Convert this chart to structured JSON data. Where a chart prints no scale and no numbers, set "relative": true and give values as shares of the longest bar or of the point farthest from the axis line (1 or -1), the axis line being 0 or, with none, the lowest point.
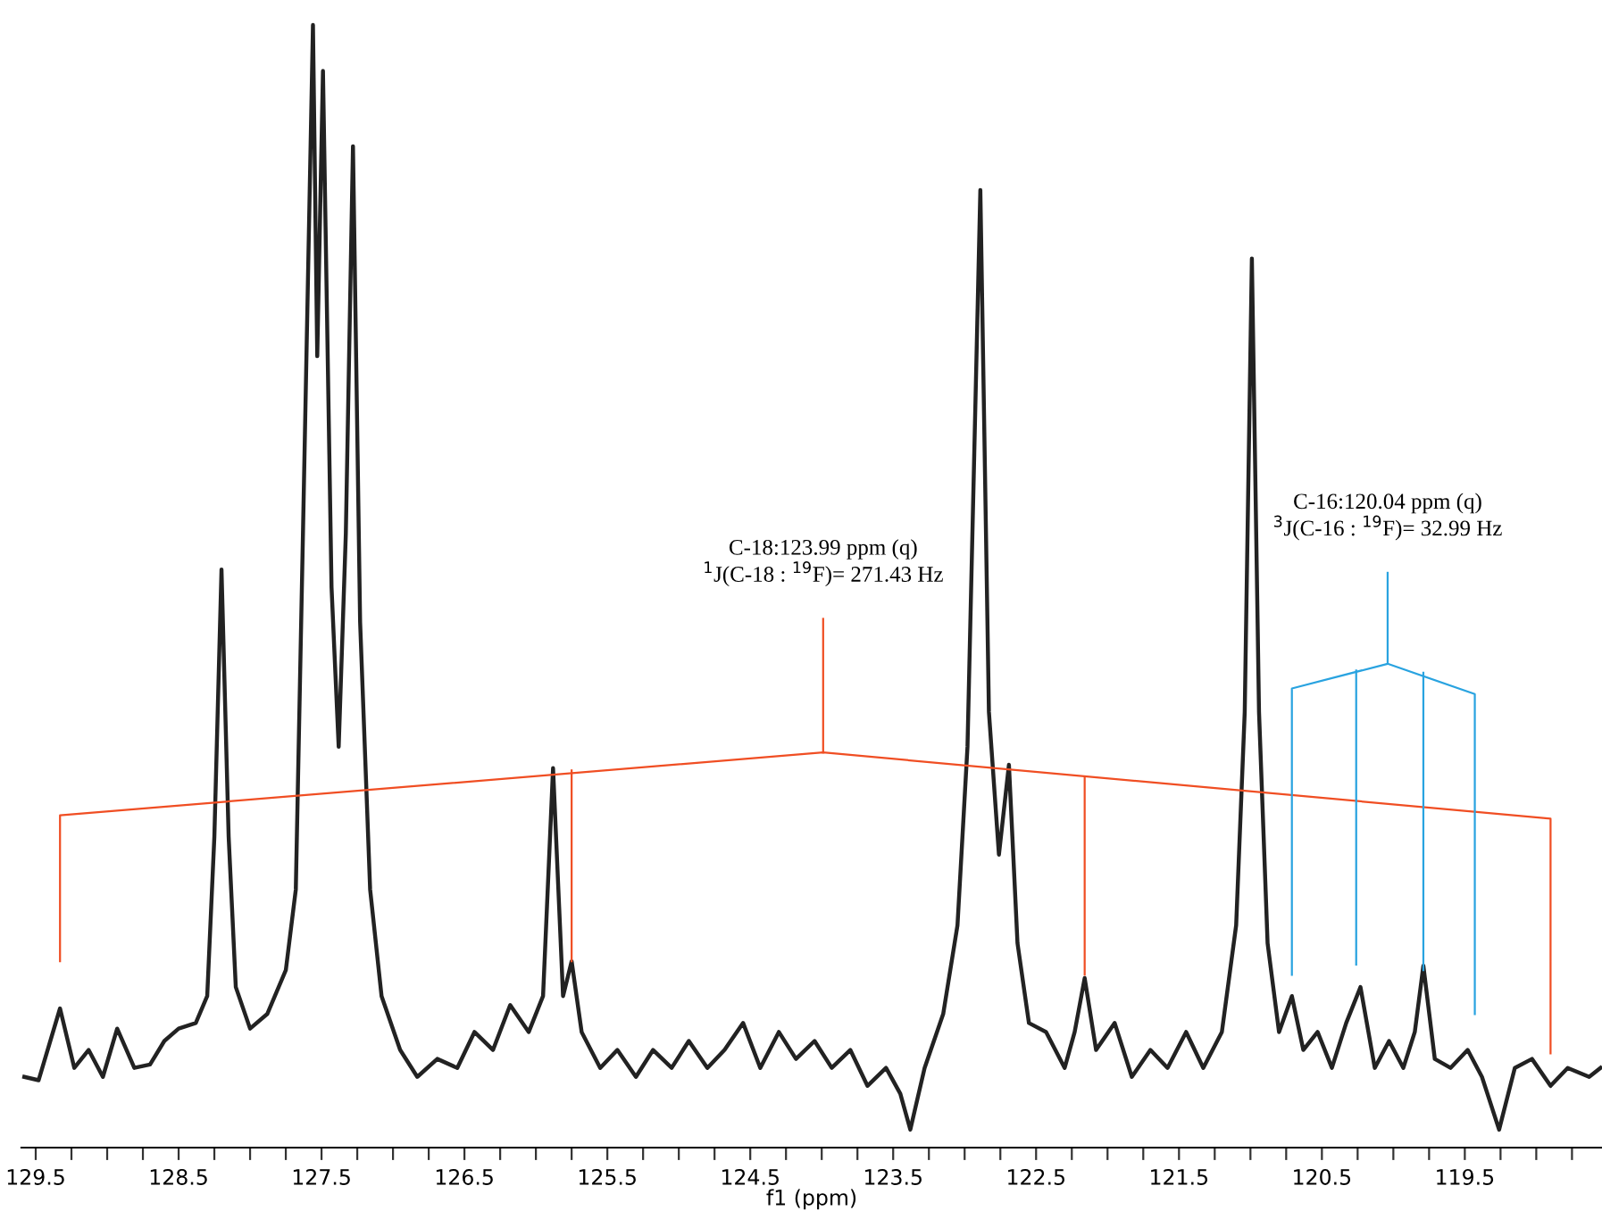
{
  "chart_data": {
    "type": "line",
    "relative": true,
    "xlabel": "f1 (ppm)",
    "tick_labels": "x",
    "xlim": [
      129.6,
      118.54
    ],
    "xticks": [
      129.5,
      {
        "value": 129.25,
        "label": null
      },
      {
        "value": 129.0,
        "label": null
      },
      {
        "value": 128.75,
        "label": null
      },
      128.5,
      {
        "value": 128.25,
        "label": null
      },
      {
        "value": 128.0,
        "label": null
      },
      {
        "value": 127.75,
        "label": null
      },
      127.5,
      {
        "value": 127.25,
        "label": null
      },
      {
        "value": 127.0,
        "label": null
      },
      {
        "value": 126.75,
        "label": null
      },
      126.5,
      {
        "value": 126.25,
        "label": null
      },
      {
        "value": 126.0,
        "label": null
      },
      {
        "value": 125.75,
        "label": null
      },
      125.5,
      {
        "value": 125.25,
        "label": null
      },
      {
        "value": 125.0,
        "label": null
      },
      {
        "value": 124.75,
        "label": null
      },
      124.5,
      {
        "value": 124.25,
        "label": null
      },
      {
        "value": 124.0,
        "label": null
      },
      {
        "value": 123.75,
        "label": null
      },
      123.5,
      {
        "value": 123.25,
        "label": null
      },
      {
        "value": 123.0,
        "label": null
      },
      {
        "value": 122.75,
        "label": null
      },
      122.5,
      {
        "value": 122.25,
        "label": null
      },
      {
        "value": 122.0,
        "label": null
      },
      {
        "value": 121.75,
        "label": null
      },
      121.5,
      {
        "value": 121.25,
        "label": null
      },
      {
        "value": 121.0,
        "label": null
      },
      {
        "value": 120.75,
        "label": null
      },
      120.5,
      {
        "value": 120.25,
        "label": null
      },
      {
        "value": 120.0,
        "label": null
      },
      {
        "value": 119.75,
        "label": null
      },
      119.5,
      {
        "value": 119.25,
        "label": null
      },
      {
        "value": 119.0,
        "label": null
      },
      {
        "value": 118.75,
        "label": null
      }
    ],
    "marker": "none",
    "line_style": "solid",
    "series": [
      {
        "color": "#222222",
        "x": [
          129.58,
          129.48,
          129.33,
          129.23,
          129.13,
          129.03,
          128.93,
          128.81,
          128.7,
          128.6,
          128.5,
          128.38,
          128.3,
          128.25,
          128.2,
          128.15,
          128.1,
          128.0,
          127.88,
          127.75,
          127.68,
          127.63,
          127.56,
          127.53,
          127.49,
          127.43,
          127.38,
          127.33,
          127.28,
          127.23,
          127.16,
          127.08,
          126.95,
          126.83,
          126.69,
          126.55,
          126.43,
          126.3,
          126.18,
          126.05,
          125.95,
          125.88,
          125.81,
          125.75,
          125.68,
          125.55,
          125.43,
          125.3,
          125.18,
          125.05,
          124.93,
          124.8,
          124.68,
          124.55,
          124.43,
          124.3,
          124.18,
          124.05,
          123.93,
          123.8,
          123.68,
          123.55,
          123.45,
          123.38,
          123.28,
          123.15,
          123.05,
          122.98,
          122.89,
          122.83,
          122.76,
          122.69,
          122.63,
          122.55,
          122.43,
          122.3,
          122.23,
          122.16,
          122.08,
          121.95,
          121.83,
          121.7,
          121.58,
          121.45,
          121.33,
          121.2,
          121.1,
          121.04,
          120.99,
          120.94,
          120.88,
          120.8,
          120.71,
          120.63,
          120.53,
          120.43,
          120.33,
          120.23,
          120.13,
          120.03,
          119.93,
          119.85,
          119.79,
          119.71,
          119.6,
          119.48,
          119.38,
          119.26,
          119.15,
          119.03,
          118.9,
          118.78,
          118.63,
          118.55
        ],
        "values": [
          0.063,
          0.06,
          0.124,
          0.071,
          0.087,
          0.063,
          0.106,
          0.071,
          0.074,
          0.095,
          0.106,
          0.111,
          0.135,
          0.277,
          0.515,
          0.277,
          0.143,
          0.106,
          0.119,
          0.158,
          0.23,
          0.547,
          1.0,
          0.705,
          0.959,
          0.499,
          0.357,
          0.547,
          0.892,
          0.468,
          0.23,
          0.135,
          0.087,
          0.063,
          0.079,
          0.071,
          0.103,
          0.087,
          0.127,
          0.103,
          0.135,
          0.338,
          0.135,
          0.166,
          0.103,
          0.071,
          0.087,
          0.063,
          0.087,
          0.071,
          0.095,
          0.071,
          0.087,
          0.111,
          0.071,
          0.103,
          0.079,
          0.095,
          0.071,
          0.087,
          0.055,
          0.071,
          0.048,
          0.016,
          0.071,
          0.119,
          0.198,
          0.357,
          0.853,
          0.388,
          0.261,
          0.341,
          0.182,
          0.111,
          0.103,
          0.071,
          0.103,
          0.151,
          0.087,
          0.111,
          0.063,
          0.087,
          0.071,
          0.103,
          0.071,
          0.103,
          0.198,
          0.388,
          0.792,
          0.388,
          0.182,
          0.103,
          0.135,
          0.087,
          0.103,
          0.071,
          0.111,
          0.143,
          0.071,
          0.095,
          0.071,
          0.103,
          0.162,
          0.079,
          0.071,
          0.087,
          0.063,
          0.016,
          0.071,
          0.079,
          0.055,
          0.071,
          0.063,
          0.071
        ]
      },
      {
        "color": "#f04e23",
        "x": [
          129.33,
          129.33,
          123.99,
          118.9,
          118.9
        ],
        "values": [
          0.166,
          0.296,
          0.352,
          0.293,
          0.084
        ]
      },
      {
        "color": "#f04e23",
        "x": [
          123.99,
          123.99
        ],
        "values": [
          0.352,
          0.471
        ]
      },
      {
        "color": "#f04e23",
        "x": [
          125.75,
          125.75
        ],
        "values": [
          0.336,
          0.166
        ]
      },
      {
        "color": "#f04e23",
        "x": [
          122.16,
          122.16
        ],
        "values": [
          0.33,
          0.154
        ]
      },
      {
        "color": "#29a3e0",
        "x": [
          120.71,
          120.71,
          120.04,
          119.43,
          119.43
        ],
        "values": [
          0.154,
          0.409,
          0.431,
          0.404,
          0.119
        ]
      },
      {
        "color": "#29a3e0",
        "x": [
          120.04,
          120.04
        ],
        "values": [
          0.431,
          0.512
        ]
      },
      {
        "color": "#29a3e0",
        "x": [
          120.26,
          120.26
        ],
        "values": [
          0.425,
          0.163
        ]
      },
      {
        "color": "#29a3e0",
        "x": [
          119.79,
          119.79
        ],
        "values": [
          0.423,
          0.158
        ]
      }
    ],
    "annotations": [
      {
        "text": "C-18:123.99 ppm (q)\n$^{1}$J(C-18 : $^{19}$F)= 271.43 Hz",
        "x": 123.99,
        "y": 0.471
      },
      {
        "text": "C-16:120.04 ppm (q)\n$^{3}$J(C-16 : $^{19}$F)= 32.99 Hz",
        "x": 120.04,
        "y": 0.512
      }
    ]
  }
}
